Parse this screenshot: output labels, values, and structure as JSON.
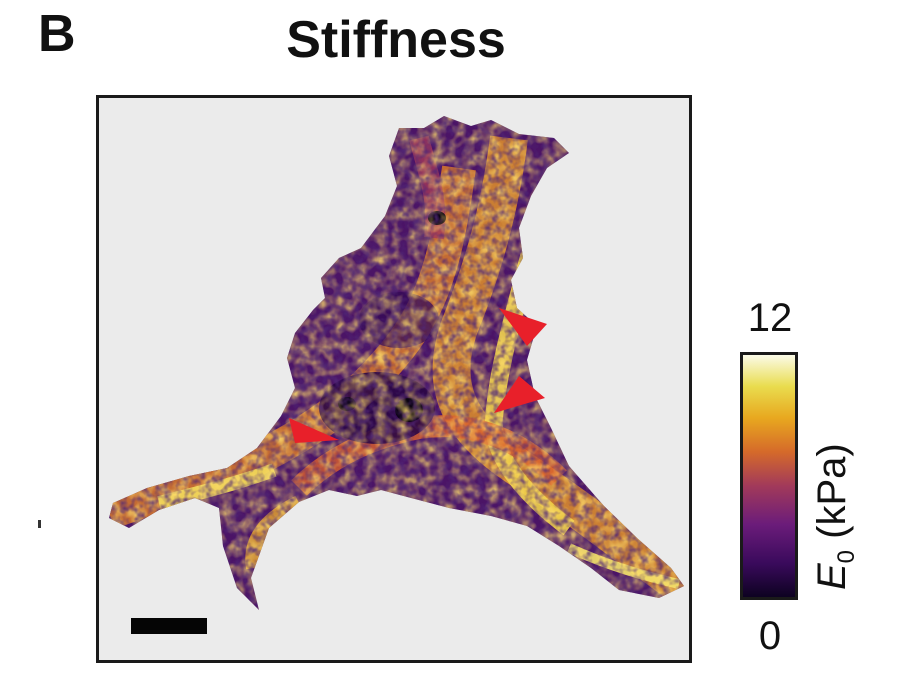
{
  "figure": {
    "panel_letter": "B",
    "title": "Stiffness"
  },
  "colorbar": {
    "max_label": "12",
    "min_label": "0",
    "symbol": "E",
    "subscript": "0",
    "unit": "(kPa)",
    "colors": [
      "#0d0221",
      "#3a0a5c",
      "#6b1c7a",
      "#a23a5a",
      "#d56a2a",
      "#e8a81f",
      "#e9dc4e",
      "#fbfbe8"
    ]
  },
  "map": {
    "background_color": "#ebebeb",
    "arrowhead_color": "#e8202a",
    "arrowhead_count": 3
  }
}
